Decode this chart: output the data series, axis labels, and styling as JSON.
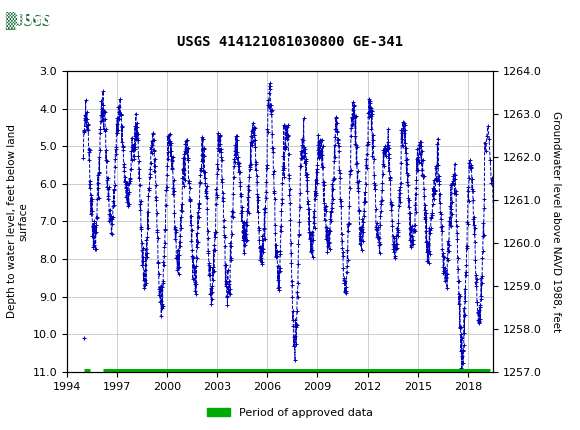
{
  "title": "USGS 414121081030800 GE-341",
  "ylabel_left": "Depth to water level, feet below land\nsurface",
  "ylabel_right": "Groundwater level above NAVD 1988, feet",
  "ylim_left": [
    11.0,
    3.0
  ],
  "ylim_right": [
    1257.0,
    1264.0
  ],
  "xlim": [
    1994,
    2019.5
  ],
  "yticks_left": [
    3.0,
    4.0,
    5.0,
    6.0,
    7.0,
    8.0,
    9.0,
    10.0,
    11.0
  ],
  "yticks_right": [
    1257.0,
    1258.0,
    1259.0,
    1260.0,
    1261.0,
    1262.0,
    1263.0,
    1264.0
  ],
  "xticks": [
    1994,
    1997,
    2000,
    2003,
    2006,
    2009,
    2012,
    2015,
    2018
  ],
  "header_color": "#1a6b3c",
  "data_color": "#0000bb",
  "approved_color": "#00aa00",
  "legend_label": "Period of approved data",
  "background_color": "#ffffff",
  "grid_color": "#bbbbbb"
}
